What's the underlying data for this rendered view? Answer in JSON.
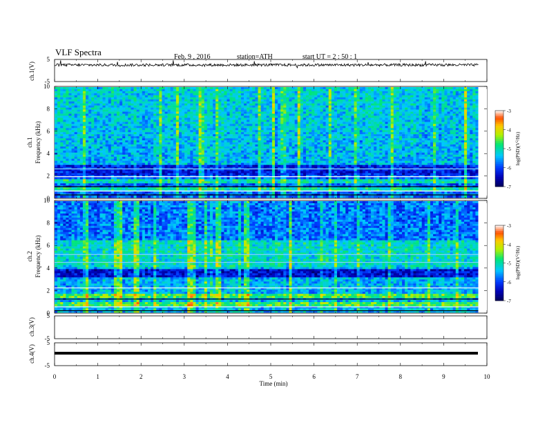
{
  "header": {
    "title": "VLF  Spectra",
    "date": "Feb. 9  , 2016",
    "station": "station=ATH",
    "start": "start  UT  =   2  : 50 : 1"
  },
  "labels": {
    "ch1": "ch.1(V)",
    "ch2": "ch.2",
    "ch3": "ch.3(V)",
    "ch4": "ch.4(V)",
    "freq_label": "Frequency  (kHz)",
    "time_label": "Time  (min)",
    "cb_label_a": "log(PSD)(V",
    "cb_label_b": "2",
    "cb_label_c": "/Hz)"
  },
  "colors": {
    "background": "#ffffff",
    "axis": "#000000",
    "spectrogram_low": "#00005a",
    "spectrogram_mid": "#00c8ff",
    "spectrogram_high": "#ff0000"
  },
  "chart_data": [
    {
      "type": "line",
      "name": "ch.1(V)",
      "ylim": [
        -5,
        5
      ],
      "yticks": [
        5,
        -5
      ],
      "xlim": [
        0,
        10
      ],
      "baseline": 2.5,
      "note_amplitude": "small noisy fluctuation"
    },
    {
      "type": "heatmap",
      "name": "ch.1",
      "ylabel": "Frequency  (kHz)",
      "ylim": [
        0,
        10
      ],
      "yticks": [
        0,
        2,
        4,
        6,
        8,
        10
      ],
      "xlim": [
        0,
        9.8
      ],
      "colorbar": {
        "ticks": [
          -3,
          -4,
          -5,
          -6,
          -7
        ],
        "range": [
          -7,
          -3
        ]
      }
    },
    {
      "type": "heatmap",
      "name": "ch.2",
      "ylabel": "Frequency  (kHz)",
      "ylim": [
        0,
        10
      ],
      "yticks": [
        0,
        2,
        4,
        6,
        8,
        10
      ],
      "xlim": [
        0,
        9.8
      ],
      "colorbar": {
        "ticks": [
          -3,
          -4,
          -5,
          -6,
          -7
        ],
        "range": [
          -7,
          -3
        ]
      }
    },
    {
      "type": "line",
      "name": "ch.3(V)",
      "ylim": [
        -5,
        5
      ],
      "yticks": [
        5,
        -5
      ],
      "xlim": [
        0,
        10
      ],
      "note": "no visible data"
    },
    {
      "type": "line",
      "name": "ch.4(V)",
      "ylim": [
        -5,
        5
      ],
      "yticks": [
        5,
        -5
      ],
      "xlim": [
        0,
        9.8
      ],
      "baseline": -1.5
    },
    {
      "type": "axis",
      "xlabel": "Time  (min)",
      "xticks": [
        0,
        1,
        2,
        3,
        4,
        5,
        6,
        7,
        8,
        9,
        10
      ]
    }
  ]
}
